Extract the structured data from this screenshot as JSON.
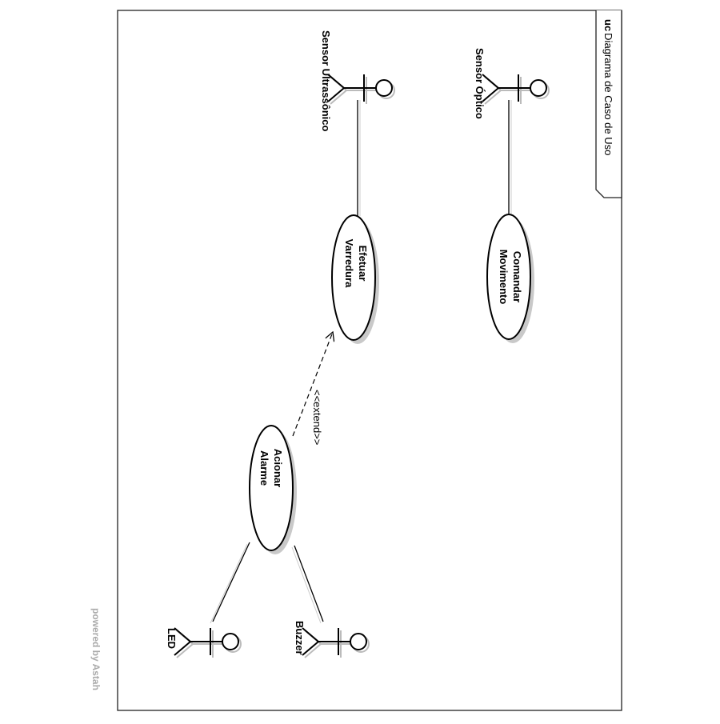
{
  "frame": {
    "kind": "uc",
    "title": "Diagrama de Caso de Uso"
  },
  "actors": {
    "sensor_optico": "Sensor Óptico",
    "sensor_ultrassonico": "Sensor Ultrassônico",
    "buzzer": "Buzzer",
    "led": "LED"
  },
  "use_cases": {
    "comandar_movimento": [
      "Comandar",
      "Movimento"
    ],
    "efetuar_varredura": [
      "Efetuar",
      "Varredura"
    ],
    "acionar_alarme": [
      "Acionar",
      "Alarme"
    ]
  },
  "relations": {
    "extend_label": "<<extend>>"
  },
  "watermark": "powered by Astah"
}
